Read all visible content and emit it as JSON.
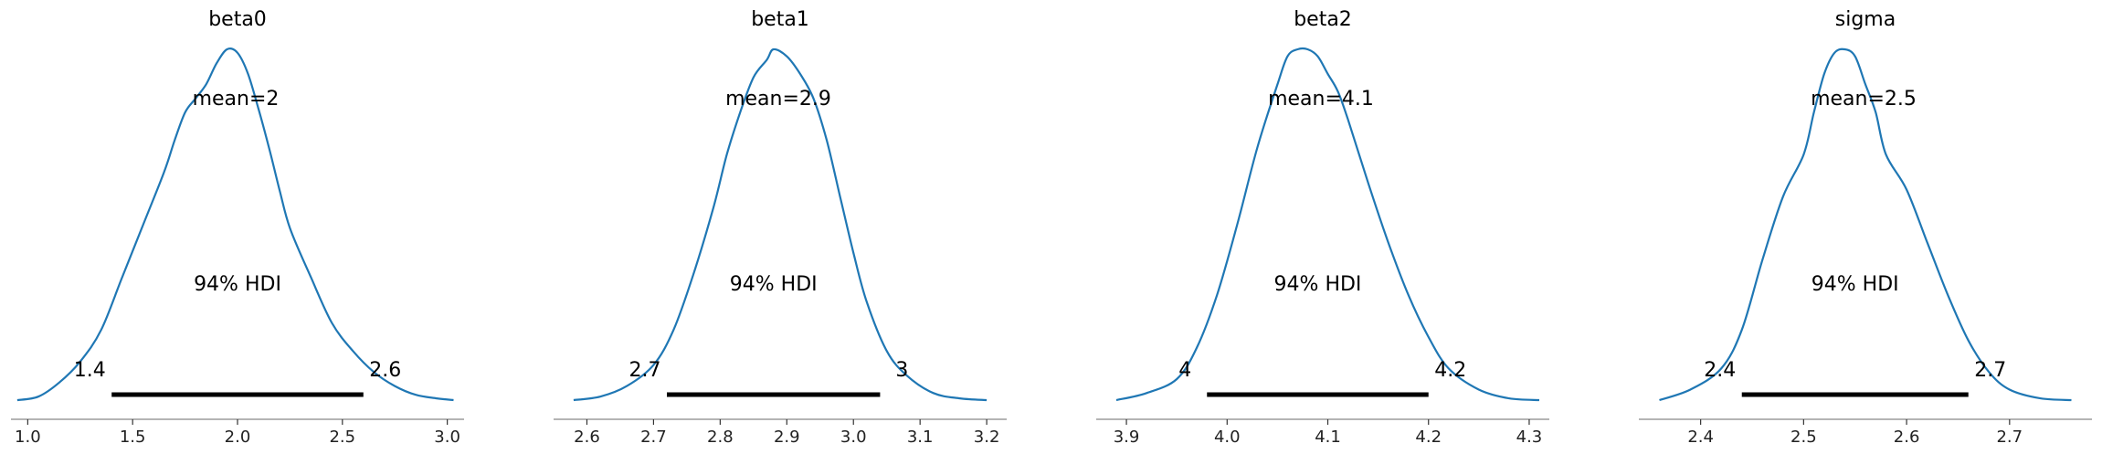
{
  "chart_data": [
    {
      "type": "line",
      "title": "beta0",
      "mean_label": "mean=2",
      "hdi_label": "94% HDI",
      "hdi": [
        1.4,
        2.6
      ],
      "hdi_low_label": "1.4",
      "hdi_high_label": "2.6",
      "xlim": [
        0.92,
        3.08
      ],
      "ylim": [
        0,
        1.0
      ],
      "ticks": [
        1.0,
        1.5,
        2.0,
        2.5,
        3.0
      ],
      "tick_labels": [
        "1.0",
        "1.5",
        "2.0",
        "2.5",
        "3.0"
      ],
      "x": [
        0.95,
        1.05,
        1.15,
        1.25,
        1.35,
        1.45,
        1.55,
        1.65,
        1.7,
        1.75,
        1.8,
        1.85,
        1.9,
        1.95,
        2.0,
        2.05,
        2.1,
        2.15,
        2.2,
        2.25,
        2.35,
        2.45,
        2.55,
        2.65,
        2.75,
        2.85,
        2.95,
        3.03
      ],
      "y": [
        0.0,
        0.01,
        0.05,
        0.11,
        0.2,
        0.35,
        0.5,
        0.65,
        0.74,
        0.82,
        0.86,
        0.9,
        0.96,
        1.0,
        0.99,
        0.93,
        0.83,
        0.72,
        0.6,
        0.49,
        0.35,
        0.22,
        0.14,
        0.08,
        0.04,
        0.015,
        0.005,
        0.0
      ]
    },
    {
      "type": "line",
      "title": "beta1",
      "mean_label": "mean=2.9",
      "hdi_label": "94% HDI",
      "hdi": [
        2.72,
        3.04
      ],
      "hdi_low_label": "2.7",
      "hdi_high_label": "3",
      "xlim": [
        2.55,
        3.23
      ],
      "ylim": [
        0,
        1.0
      ],
      "ticks": [
        2.6,
        2.7,
        2.8,
        2.9,
        3.0,
        3.1,
        3.2
      ],
      "tick_labels": [
        "2.6",
        "2.7",
        "2.8",
        "2.9",
        "3.0",
        "3.1",
        "3.2"
      ],
      "x": [
        2.58,
        2.62,
        2.66,
        2.7,
        2.73,
        2.76,
        2.79,
        2.81,
        2.83,
        2.85,
        2.87,
        2.88,
        2.9,
        2.92,
        2.94,
        2.96,
        2.98,
        3.0,
        3.02,
        3.05,
        3.08,
        3.12,
        3.16,
        3.2
      ],
      "y": [
        0.0,
        0.01,
        0.04,
        0.1,
        0.2,
        0.36,
        0.55,
        0.7,
        0.82,
        0.92,
        0.97,
        1.0,
        0.98,
        0.93,
        0.86,
        0.74,
        0.58,
        0.42,
        0.28,
        0.14,
        0.07,
        0.02,
        0.005,
        0.0
      ]
    },
    {
      "type": "line",
      "title": "beta2",
      "mean_label": "mean=4.1",
      "hdi_label": "94% HDI",
      "hdi": [
        3.98,
        4.2
      ],
      "hdi_low_label": "4",
      "hdi_high_label": "4.2",
      "xlim": [
        3.87,
        4.32
      ],
      "ylim": [
        0,
        1.0
      ],
      "ticks": [
        3.9,
        4.0,
        4.1,
        4.2,
        4.3
      ],
      "tick_labels": [
        "3.9",
        "4.0",
        "4.1",
        "4.2",
        "4.3"
      ],
      "x": [
        3.89,
        3.92,
        3.95,
        3.97,
        3.99,
        4.01,
        4.03,
        4.05,
        4.06,
        4.07,
        4.08,
        4.09,
        4.1,
        4.11,
        4.12,
        4.14,
        4.16,
        4.18,
        4.2,
        4.22,
        4.25,
        4.28,
        4.31
      ],
      "y": [
        0.0,
        0.02,
        0.06,
        0.15,
        0.3,
        0.5,
        0.72,
        0.9,
        0.98,
        1.0,
        1.0,
        0.98,
        0.93,
        0.88,
        0.8,
        0.62,
        0.45,
        0.3,
        0.18,
        0.09,
        0.03,
        0.005,
        0.0
      ]
    },
    {
      "type": "line",
      "title": "sigma",
      "mean_label": "mean=2.5",
      "hdi_label": "94% HDI",
      "hdi": [
        2.44,
        2.66
      ],
      "hdi_low_label": "2.4",
      "hdi_high_label": "2.7",
      "xlim": [
        2.34,
        2.78
      ],
      "ylim": [
        0,
        1.0
      ],
      "ticks": [
        2.4,
        2.5,
        2.6,
        2.7
      ],
      "tick_labels": [
        "2.4",
        "2.5",
        "2.6",
        "2.7"
      ],
      "x": [
        2.36,
        2.39,
        2.42,
        2.44,
        2.46,
        2.48,
        2.5,
        2.51,
        2.52,
        2.53,
        2.54,
        2.55,
        2.56,
        2.57,
        2.58,
        2.6,
        2.62,
        2.64,
        2.66,
        2.68,
        2.7,
        2.73,
        2.76
      ],
      "y": [
        0.0,
        0.03,
        0.09,
        0.2,
        0.4,
        0.58,
        0.7,
        0.82,
        0.93,
        0.99,
        1.0,
        0.98,
        0.9,
        0.82,
        0.7,
        0.6,
        0.45,
        0.3,
        0.17,
        0.08,
        0.03,
        0.005,
        0.0
      ]
    }
  ]
}
